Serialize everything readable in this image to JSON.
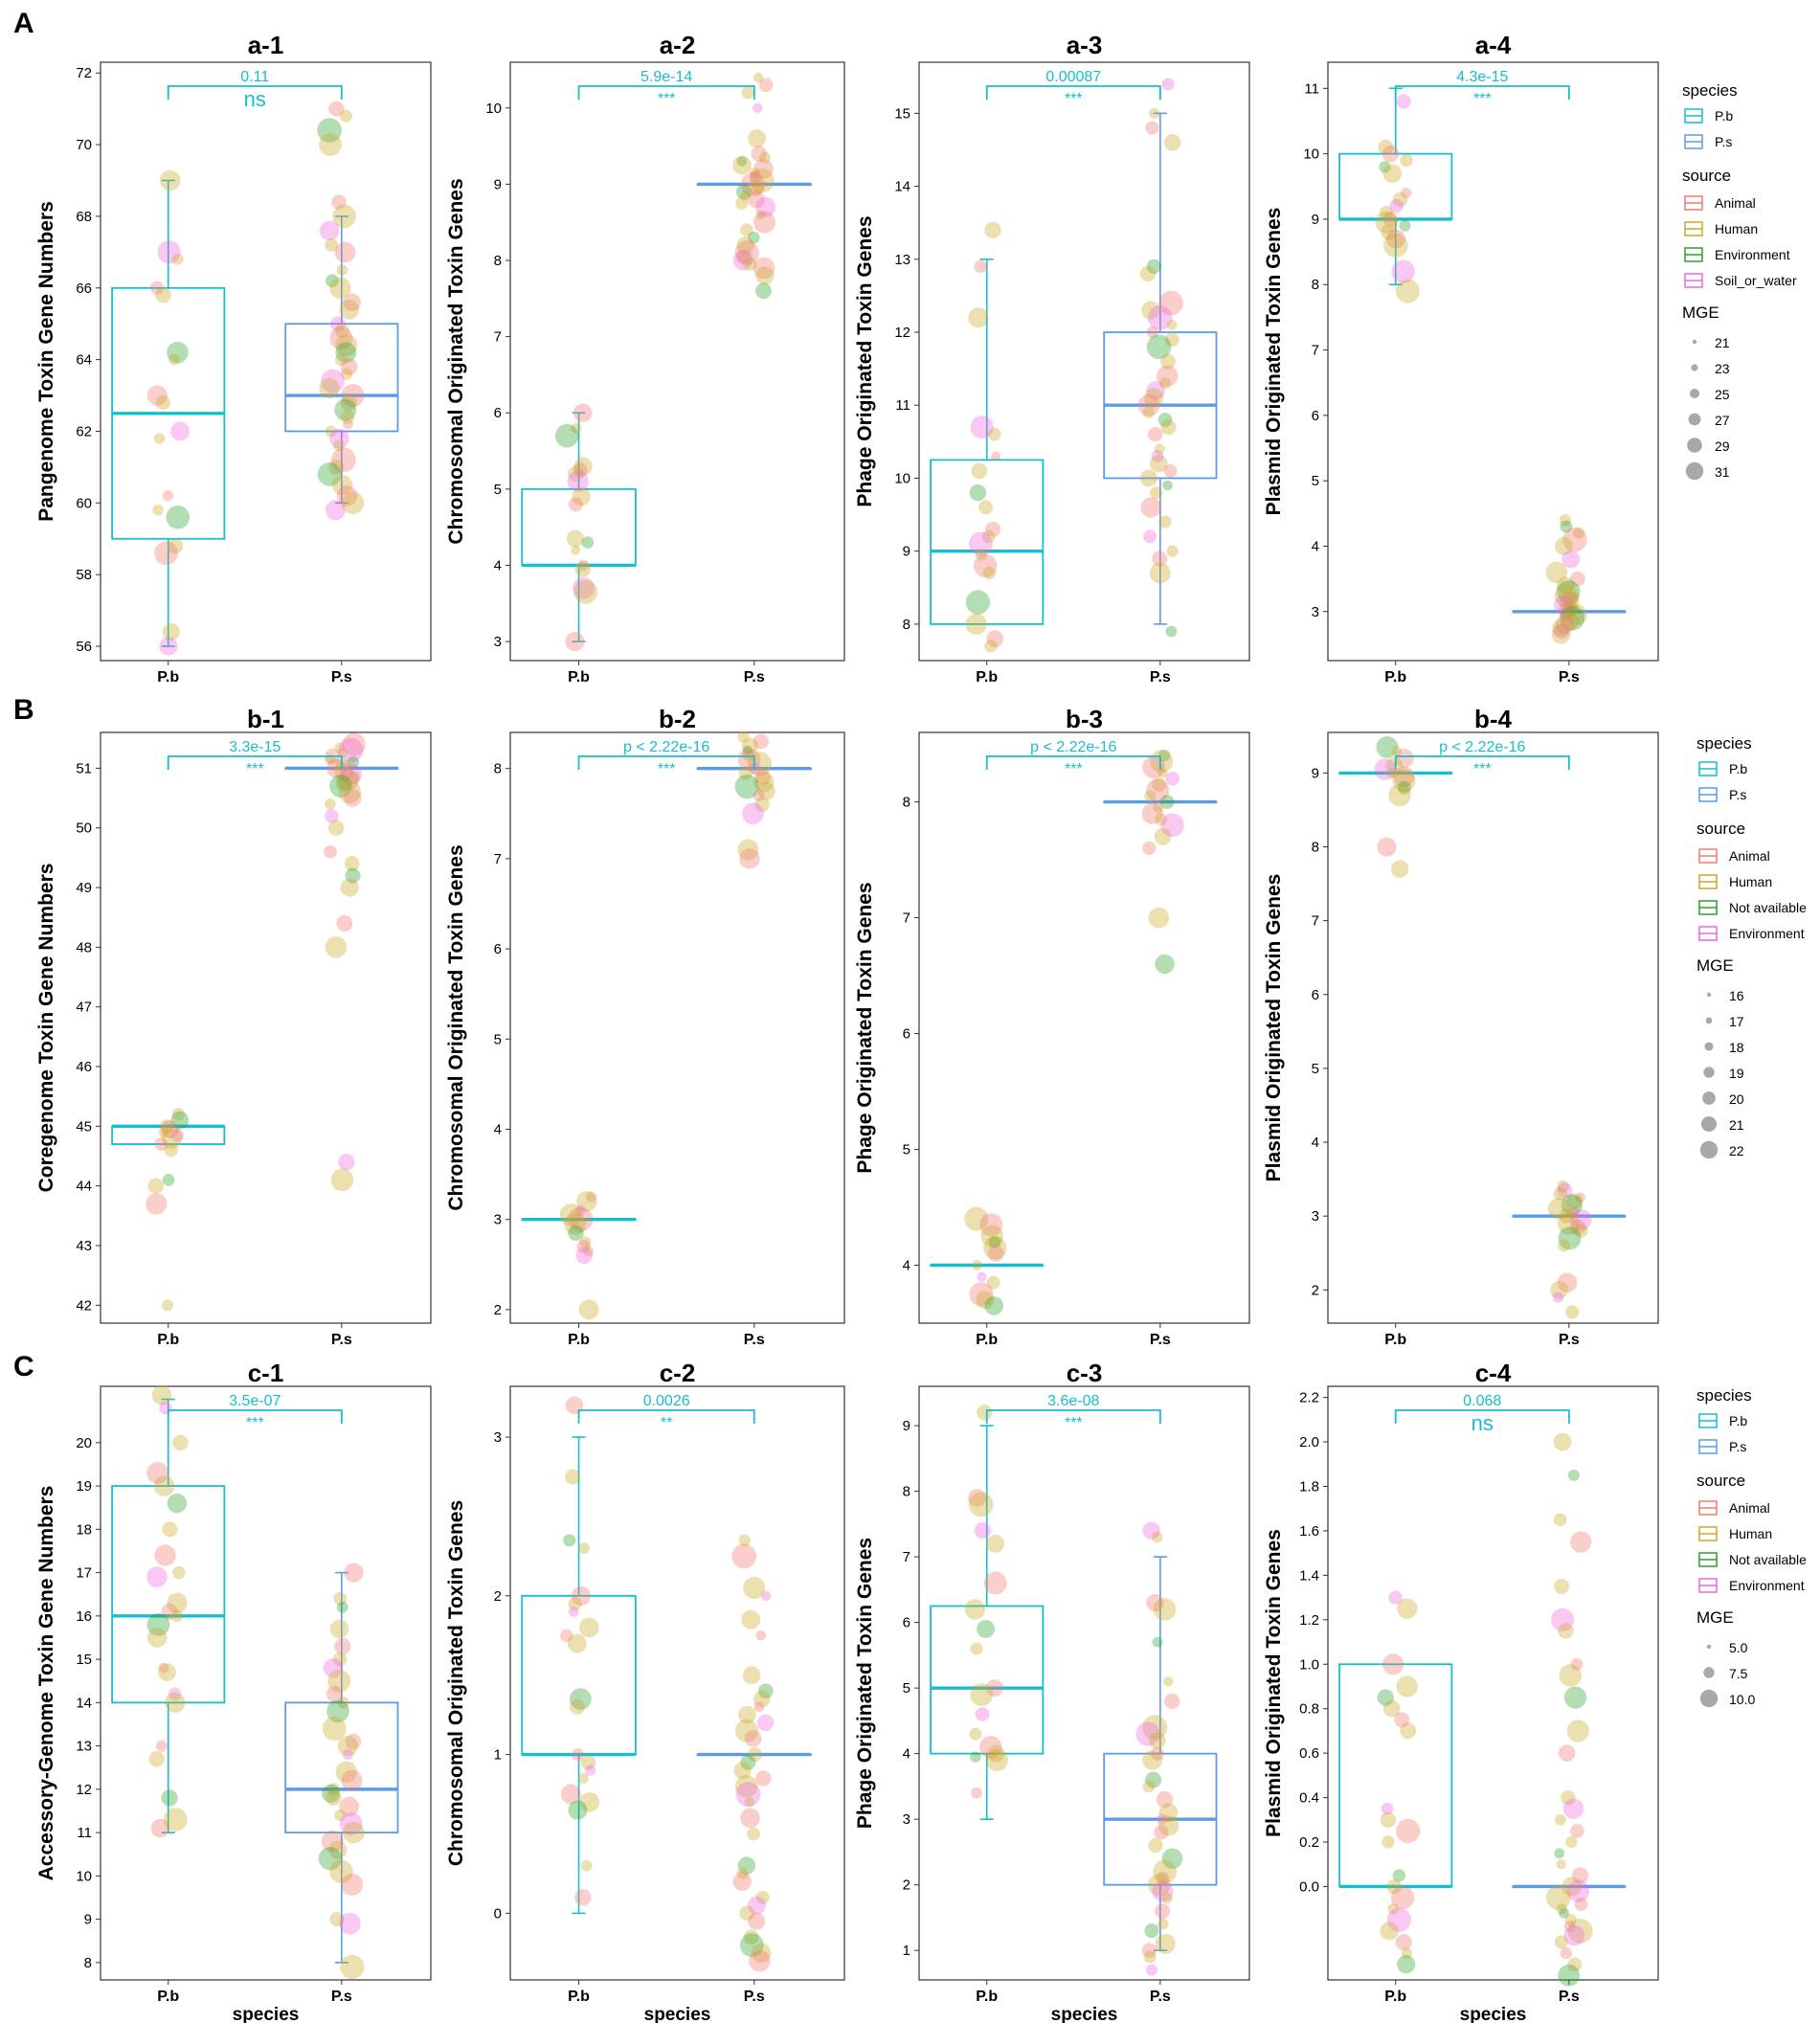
{
  "colors": {
    "pb": "#17becf",
    "ps": "#5b9be8",
    "Animal": "#f07b6e",
    "Human": "#c9a927",
    "Environment_green": "#2ca02c",
    "Pink": "#ee66dd",
    "pval_text": "#17becf"
  },
  "rows": [
    {
      "label": "A"
    },
    {
      "label": "B"
    },
    {
      "label": "C"
    }
  ],
  "x_categories": [
    "P.b",
    "P.s"
  ],
  "x_axis_label": "species",
  "legends": [
    {
      "species_title": "species",
      "species_items": [
        "P.b",
        "P.s"
      ],
      "source_title": "source",
      "source_items": [
        "Animal",
        "Human",
        "Environment",
        "Soil_or_water"
      ],
      "mge_title": "MGE",
      "mge_items": [
        "21",
        "23",
        "25",
        "27",
        "29",
        "31"
      ]
    },
    {
      "species_title": "species",
      "species_items": [
        "P.b",
        "P.s"
      ],
      "source_title": "source",
      "source_items": [
        "Animal",
        "Human",
        "Not available",
        "Environment"
      ],
      "mge_title": "MGE",
      "mge_items": [
        "16",
        "17",
        "18",
        "19",
        "20",
        "21",
        "22"
      ]
    },
    {
      "species_title": "species",
      "species_items": [
        "P.b",
        "P.s"
      ],
      "source_title": "source",
      "source_items": [
        "Animal",
        "Human",
        "Not available",
        "Environment"
      ],
      "mge_title": "MGE",
      "mge_items": [
        "5.0",
        "7.5",
        "10.0"
      ]
    }
  ],
  "chart_data": [
    {
      "id": "a-1",
      "type": "box",
      "title": "a-1",
      "ylabel": "Pangenome Toxin Gene Numbers",
      "ylim": [
        55.6,
        72.3
      ],
      "yticks": [
        56,
        58,
        60,
        62,
        64,
        66,
        68,
        70,
        72
      ],
      "pb": {
        "min": 56,
        "q1": 59,
        "median": 62.5,
        "q3": 66,
        "max": 69
      },
      "ps": {
        "min": 60,
        "q1": 62,
        "median": 63,
        "q3": 65,
        "max": 68
      },
      "pvalue": "0.11",
      "sig": "ns",
      "pb_points": [
        69,
        67,
        66.8,
        66,
        65.8,
        64.2,
        64,
        63,
        62.8,
        62,
        61.8,
        60.2,
        59.8,
        59.6,
        58.8,
        58.6,
        56.4,
        56
      ],
      "ps_points": [
        71,
        70.8,
        70.4,
        70,
        68.4,
        68,
        67.6,
        67.2,
        67,
        66.5,
        66.2,
        66,
        65.6,
        65.4,
        65,
        64.8,
        64.6,
        64.4,
        64.2,
        64,
        63.8,
        63.6,
        63.4,
        63.2,
        63,
        62.8,
        62.6,
        62.4,
        62.2,
        62,
        61.8,
        61.6,
        61.2,
        61,
        60.8,
        60.5,
        60.2,
        60,
        59.8
      ]
    },
    {
      "id": "a-2",
      "type": "box",
      "title": "a-2",
      "ylabel": "Chromosomal Originated Toxin Genes",
      "ylim": [
        2.75,
        10.6
      ],
      "yticks": [
        3,
        4,
        5,
        6,
        7,
        8,
        9,
        10
      ],
      "pb": {
        "min": 3,
        "q1": 4,
        "median": 4,
        "q3": 5,
        "max": 6
      },
      "ps": {
        "min": 9,
        "q1": 9,
        "median": 9,
        "q3": 9,
        "max": 9
      },
      "pvalue": "5.9e-14",
      "sig": "***",
      "pb_points": [
        6,
        5.8,
        5.7,
        5.3,
        5.25,
        5.2,
        5.1,
        4.9,
        4.8,
        4.35,
        4.3,
        4.2,
        4,
        3.95,
        3.7,
        3.65,
        3
      ],
      "ps_points": [
        10.4,
        10.3,
        10.2,
        10,
        9.6,
        9.4,
        9.35,
        9.3,
        9.25,
        9.2,
        9.15,
        9.1,
        9.05,
        9,
        8.95,
        8.9,
        8.85,
        8.8,
        8.75,
        8.7,
        8.6,
        8.5,
        8.4,
        8.3,
        8.2,
        8.1,
        8.05,
        8,
        7.95,
        7.9,
        7.8,
        7.6
      ]
    },
    {
      "id": "a-3",
      "type": "box",
      "title": "a-3",
      "ylabel": "Phage Originated Toxin Genes",
      "ylim": [
        7.5,
        15.7
      ],
      "yticks": [
        8,
        9,
        10,
        11,
        12,
        13,
        14,
        15
      ],
      "pb": {
        "min": 8,
        "q1": 8,
        "median": 9,
        "q3": 10.25,
        "max": 13
      },
      "ps": {
        "min": 8,
        "q1": 10,
        "median": 11,
        "q3": 12,
        "max": 15
      },
      "pvalue": "0.00087",
      "sig": "***",
      "pb_points": [
        13.4,
        12.9,
        12.2,
        10.7,
        10.6,
        10.3,
        10.1,
        9.8,
        9.6,
        9.3,
        9.2,
        9.1,
        8.95,
        8.8,
        8.7,
        8.3,
        8,
        7.8,
        7.7
      ],
      "ps_points": [
        15.4,
        15,
        14.8,
        14.6,
        12.9,
        12.8,
        12.4,
        12.3,
        12.2,
        12.1,
        12,
        11.9,
        11.8,
        11.6,
        11.4,
        11.3,
        11.2,
        11.1,
        11,
        10.9,
        10.8,
        10.7,
        10.6,
        10.4,
        10.3,
        10.2,
        10.1,
        10,
        9.9,
        9.8,
        9.6,
        9.4,
        9.2,
        9,
        8.9,
        8.7,
        7.9
      ]
    },
    {
      "id": "a-4",
      "type": "box",
      "title": "a-4",
      "ylabel": "Plasmid Originated Toxin Genes",
      "ylim": [
        2.25,
        11.4
      ],
      "yticks": [
        3,
        4,
        5,
        6,
        7,
        8,
        9,
        10,
        11
      ],
      "pb": {
        "min": 8,
        "q1": 9,
        "median": 9,
        "q3": 10,
        "max": 11
      },
      "ps": {
        "min": 3,
        "q1": 3,
        "median": 3,
        "q3": 3,
        "max": 3
      },
      "pvalue": "4.3e-15",
      "sig": "***",
      "pb_points": [
        10.8,
        10.1,
        10,
        9.9,
        9.8,
        9.7,
        9.4,
        9.3,
        9.2,
        9.1,
        9,
        8.95,
        8.9,
        8.8,
        8.7,
        8.6,
        8.2,
        7.9
      ],
      "ps_points": [
        4.4,
        4.3,
        4.2,
        4.1,
        4,
        3.8,
        3.6,
        3.5,
        3.4,
        3.3,
        3.25,
        3.2,
        3.15,
        3.1,
        3.05,
        3,
        2.95,
        2.9,
        2.85,
        2.8,
        2.75,
        2.7,
        2.65
      ]
    },
    {
      "id": "b-1",
      "type": "box",
      "title": "b-1",
      "ylabel": "Coregenome Toxin Gene Numbers",
      "ylim": [
        41.7,
        51.6
      ],
      "yticks": [
        42,
        43,
        44,
        45,
        46,
        47,
        48,
        49,
        50,
        51
      ],
      "pb": {
        "min": 44.7,
        "q1": 44.7,
        "median": 45,
        "q3": 45,
        "max": 45
      },
      "ps": {
        "min": 51,
        "q1": 51,
        "median": 51,
        "q3": 51,
        "max": 51
      },
      "pvalue": "3.3e-15",
      "sig": "***",
      "pb_points": [
        45.2,
        45.1,
        45,
        44.95,
        44.9,
        44.85,
        44.8,
        44.7,
        44.6,
        44.1,
        44,
        43.7,
        42
      ],
      "ps_points": [
        51.4,
        51.35,
        51.3,
        51.25,
        51.2,
        51.15,
        51.1,
        51.05,
        51,
        50.95,
        50.9,
        50.85,
        50.8,
        50.75,
        50.7,
        50.6,
        50.5,
        50.4,
        50.2,
        50,
        49.6,
        49.4,
        49.2,
        49,
        48.4,
        48,
        44.4,
        44.1
      ]
    },
    {
      "id": "b-2",
      "type": "box",
      "title": "b-2",
      "ylabel": "Chromosomal Originated Toxin Genes",
      "ylim": [
        1.85,
        8.4
      ],
      "yticks": [
        2,
        3,
        4,
        5,
        6,
        7,
        8
      ],
      "pb": {
        "min": 3,
        "q1": 3,
        "median": 3,
        "q3": 3,
        "max": 3
      },
      "ps": {
        "min": 8,
        "q1": 8,
        "median": 8,
        "q3": 8,
        "max": 8
      },
      "pvalue": "p < 2.22e-16",
      "sig": "***",
      "pb_points": [
        3.25,
        3.2,
        3.1,
        3.05,
        3,
        2.95,
        2.85,
        2.75,
        2.7,
        2.65,
        2.6,
        2
      ],
      "ps_points": [
        8.35,
        8.3,
        8.25,
        8.2,
        8.15,
        8.1,
        8.05,
        8,
        7.95,
        7.9,
        7.85,
        7.8,
        7.75,
        7.7,
        7.6,
        7.5,
        7.1,
        7
      ]
    },
    {
      "id": "b-3",
      "type": "box",
      "title": "b-3",
      "ylabel": "Phage Originated Toxin Genes",
      "ylim": [
        3.5,
        8.6
      ],
      "yticks": [
        4,
        5,
        6,
        7,
        8
      ],
      "pb": {
        "min": 4,
        "q1": 4,
        "median": 4,
        "q3": 4,
        "max": 4
      },
      "ps": {
        "min": 8,
        "q1": 8,
        "median": 8,
        "q3": 8,
        "max": 8
      },
      "pvalue": "p < 2.22e-16",
      "sig": "***",
      "pb_points": [
        4.4,
        4.35,
        4.25,
        4.2,
        4.15,
        4.1,
        4,
        3.9,
        3.85,
        3.75,
        3.7,
        3.65
      ],
      "ps_points": [
        8.4,
        8.35,
        8.3,
        8.25,
        8.2,
        8.15,
        8.1,
        8.05,
        8,
        7.95,
        7.9,
        7.85,
        7.8,
        7.7,
        7.6,
        7,
        6.6
      ]
    },
    {
      "id": "b-4",
      "type": "box",
      "title": "b-4",
      "ylabel": "Plasmid Originated Toxin Genes",
      "ylim": [
        1.55,
        9.55
      ],
      "yticks": [
        2,
        3,
        4,
        5,
        6,
        7,
        8,
        9
      ],
      "pb": {
        "min": 9,
        "q1": 9,
        "median": 9,
        "q3": 9,
        "max": 9
      },
      "ps": {
        "min": 3,
        "q1": 3,
        "median": 3,
        "q3": 3,
        "max": 3
      },
      "pvalue": "p < 2.22e-16",
      "sig": "***",
      "pb_points": [
        9.35,
        9.3,
        9.2,
        9.1,
        9.05,
        9,
        8.95,
        8.9,
        8.8,
        8.7,
        8,
        7.7
      ],
      "ps_points": [
        3.4,
        3.35,
        3.3,
        3.25,
        3.2,
        3.15,
        3.1,
        3.05,
        3,
        2.95,
        2.9,
        2.85,
        2.8,
        2.7,
        2.6,
        2.1,
        2,
        1.9,
        1.7
      ]
    },
    {
      "id": "c-1",
      "type": "box",
      "title": "c-1",
      "ylabel": "Accessory-Genome Toxin Gene Numbers",
      "ylim": [
        7.6,
        21.3
      ],
      "yticks": [
        8,
        9,
        10,
        11,
        12,
        13,
        14,
        15,
        16,
        17,
        18,
        19,
        20
      ],
      "pb": {
        "min": 11,
        "q1": 14,
        "median": 16,
        "q3": 19,
        "max": 21
      },
      "ps": {
        "min": 8,
        "q1": 11,
        "median": 12,
        "q3": 14,
        "max": 17
      },
      "pvalue": "3.5e-07",
      "sig": "***",
      "pb_points": [
        21.1,
        20.8,
        20,
        19.3,
        19,
        18.6,
        18,
        17.4,
        17,
        16.9,
        16.3,
        16.1,
        16,
        15.8,
        15.5,
        14.8,
        14.7,
        14.2,
        14,
        13,
        12.7,
        11.8,
        11.3,
        11.1
      ],
      "ps_points": [
        17,
        16.4,
        16.2,
        15.7,
        15.3,
        15,
        14.8,
        14.5,
        14.2,
        14,
        13.8,
        13.4,
        13.1,
        13,
        12.8,
        12.4,
        12.2,
        12,
        11.9,
        11.8,
        11.6,
        11.4,
        11.2,
        11,
        10.8,
        10.6,
        10.4,
        10.1,
        9.8,
        9,
        8.9,
        7.9
      ]
    },
    {
      "id": "c-2",
      "type": "box",
      "title": "c-2",
      "ylabel": "Chromosomal Originated Toxin Genes",
      "ylim": [
        -0.42,
        3.32
      ],
      "yticks": [
        0,
        1,
        2,
        3
      ],
      "pb": {
        "min": 0,
        "q1": 1,
        "median": 1,
        "q3": 2,
        "max": 3
      },
      "ps": {
        "min": 1,
        "q1": 1,
        "median": 1,
        "q3": 1,
        "max": 1
      },
      "pvalue": "0.0026",
      "sig": "**",
      "pb_points": [
        3.2,
        2.75,
        2.35,
        2.3,
        2,
        1.95,
        1.9,
        1.8,
        1.75,
        1.7,
        1.35,
        1.3,
        1,
        0.95,
        0.9,
        0.85,
        0.75,
        0.7,
        0.65,
        0.3,
        0.1
      ],
      "ps_points": [
        2.35,
        2.25,
        2.05,
        2,
        1.85,
        1.75,
        1.5,
        1.4,
        1.35,
        1.3,
        1.25,
        1.2,
        1.15,
        1.1,
        1,
        0.95,
        0.9,
        0.85,
        0.8,
        0.75,
        0.7,
        0.6,
        0.5,
        0.3,
        0.25,
        0.2,
        0.1,
        0.05,
        0,
        -0.05,
        -0.15,
        -0.2,
        -0.25,
        -0.3
      ]
    },
    {
      "id": "c-3",
      "type": "box",
      "title": "c-3",
      "ylabel": "Phage Originated Toxin Genes",
      "ylim": [
        0.55,
        9.6
      ],
      "yticks": [
        1,
        2,
        3,
        4,
        5,
        6,
        7,
        8,
        9
      ],
      "pb": {
        "min": 3,
        "q1": 4,
        "median": 5,
        "q3": 6.25,
        "max": 9
      },
      "ps": {
        "min": 1,
        "q1": 2,
        "median": 3,
        "q3": 4,
        "max": 7
      },
      "pvalue": "3.6e-08",
      "sig": "***",
      "pb_points": [
        9.2,
        7.9,
        7.8,
        7.4,
        7.2,
        6.6,
        6.2,
        5.9,
        5.6,
        5,
        4.9,
        4.6,
        4.3,
        4.1,
        4,
        3.95,
        3.9,
        3.4
      ],
      "ps_points": [
        7.4,
        7.3,
        6.3,
        6.2,
        5.7,
        5.1,
        4.8,
        4.4,
        4.3,
        4.2,
        4,
        3.9,
        3.6,
        3.5,
        3.3,
        3.1,
        3,
        2.9,
        2.8,
        2.6,
        2.4,
        2.2,
        2.1,
        2,
        1.9,
        1.8,
        1.6,
        1.4,
        1.3,
        1.1,
        1,
        0.9,
        0.7
      ]
    },
    {
      "id": "c-4",
      "type": "box",
      "title": "c-4",
      "ylabel": "Plasmid Originated Toxin Genes",
      "ylim": [
        -0.42,
        2.25
      ],
      "yticks": [
        0,
        0.2,
        0.4,
        0.6,
        0.8,
        1,
        1.2,
        1.4,
        1.6,
        1.8,
        2,
        2.2
      ],
      "ytick_labels": [
        "0.0",
        "0.2",
        "0.4",
        "0.6",
        "0.8",
        "1.0",
        "1.2",
        "1.4",
        "1.6",
        "1.8",
        "2.0",
        "2.2"
      ],
      "pb": {
        "min": 0,
        "q1": 0,
        "median": 0,
        "q3": 1,
        "max": 1
      },
      "ps": {
        "min": 0,
        "q1": 0,
        "median": 0,
        "q3": 0,
        "max": 0
      },
      "pvalue": "0.068",
      "sig": "ns",
      "pb_points": [
        1.3,
        1.25,
        1,
        0.9,
        0.85,
        0.8,
        0.75,
        0.7,
        0.35,
        0.3,
        0.25,
        0.2,
        0.05,
        0,
        -0.05,
        -0.1,
        -0.15,
        -0.2,
        -0.25,
        -0.3,
        -0.35
      ],
      "ps_points": [
        2,
        1.85,
        1.65,
        1.55,
        1.35,
        1.2,
        1.15,
        1,
        0.95,
        0.85,
        0.7,
        0.6,
        0.4,
        0.35,
        0.3,
        0.25,
        0.2,
        0.15,
        0.1,
        0.05,
        0,
        -0.02,
        -0.05,
        -0.08,
        -0.1,
        -0.12,
        -0.15,
        -0.18,
        -0.2,
        -0.22,
        -0.25,
        -0.3,
        -0.35,
        -0.4
      ]
    }
  ]
}
